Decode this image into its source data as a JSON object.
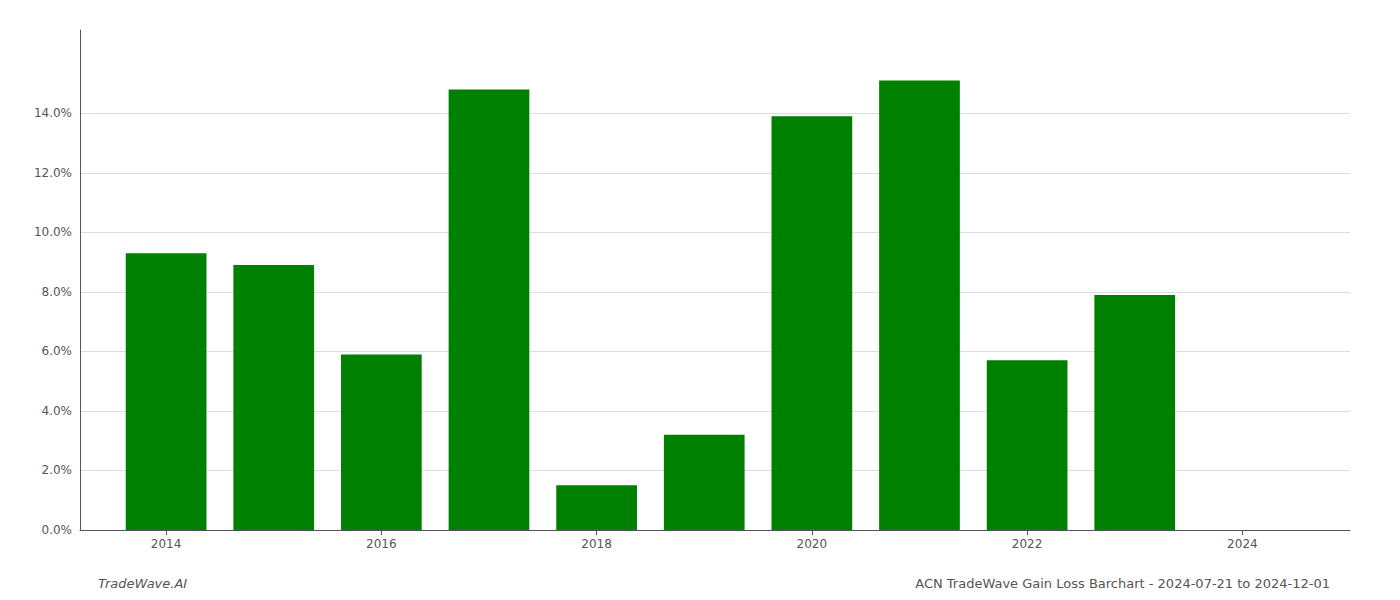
{
  "chart_data": {
    "type": "bar",
    "x": [
      2014,
      2015,
      2016,
      2017,
      2018,
      2019,
      2020,
      2021,
      2022,
      2023
    ],
    "values": [
      0.093,
      0.089,
      0.059,
      0.148,
      0.015,
      0.032,
      0.139,
      0.151,
      0.057,
      0.079
    ],
    "color": "#008000",
    "xlim": [
      2013.2,
      2025.0
    ],
    "xticks": [
      2014,
      2016,
      2018,
      2020,
      2022,
      2024
    ],
    "ylim": [
      0,
      0.168
    ],
    "yticks": [
      {
        "value": 0.0,
        "label": "0.0%"
      },
      {
        "value": 0.02,
        "label": "2.0%"
      },
      {
        "value": 0.04,
        "label": "4.0%"
      },
      {
        "value": 0.06,
        "label": "6.0%"
      },
      {
        "value": 0.08,
        "label": "8.0%"
      },
      {
        "value": 0.1,
        "label": "10.0%"
      },
      {
        "value": 0.12,
        "label": "12.0%"
      },
      {
        "value": 0.14,
        "label": "14.0%"
      }
    ],
    "grid": true,
    "annotations": [
      "TradeWave.AI",
      "ACN TradeWave Gain Loss Barchart - 2024-07-21 to 2024-12-01"
    ]
  }
}
